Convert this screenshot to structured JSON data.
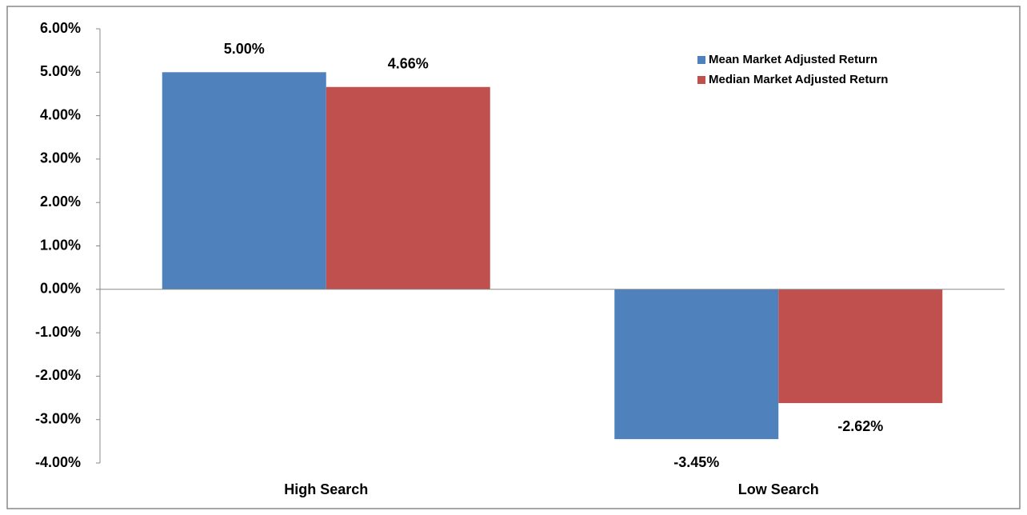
{
  "chart_data": {
    "type": "bar",
    "categories": [
      "High Search",
      "Low Search"
    ],
    "series": [
      {
        "name": "Mean Market Adjusted Return",
        "color": "#4f81bd",
        "values": [
          5.0,
          -3.45
        ],
        "value_labels": [
          "5.00%",
          "-3.45%"
        ]
      },
      {
        "name": "Median Market Adjusted Return",
        "color": "#c0504d",
        "values": [
          4.66,
          -2.62
        ],
        "value_labels": [
          "4.66%",
          "-2.62%"
        ]
      }
    ],
    "ylim": [
      -4,
      6
    ],
    "yticks": [
      {
        "value": -4,
        "label": "-4.00%"
      },
      {
        "value": -3,
        "label": "-3.00%"
      },
      {
        "value": -2,
        "label": "-2.00%"
      },
      {
        "value": -1,
        "label": "-1.00%"
      },
      {
        "value": 0,
        "label": "0.00%"
      },
      {
        "value": 1,
        "label": "1.00%"
      },
      {
        "value": 2,
        "label": "2.00%"
      },
      {
        "value": 3,
        "label": "3.00%"
      },
      {
        "value": 4,
        "label": "4.00%"
      },
      {
        "value": 5,
        "label": "5.00%"
      },
      {
        "value": 6,
        "label": "6.00%"
      }
    ],
    "legend": "top-right"
  }
}
